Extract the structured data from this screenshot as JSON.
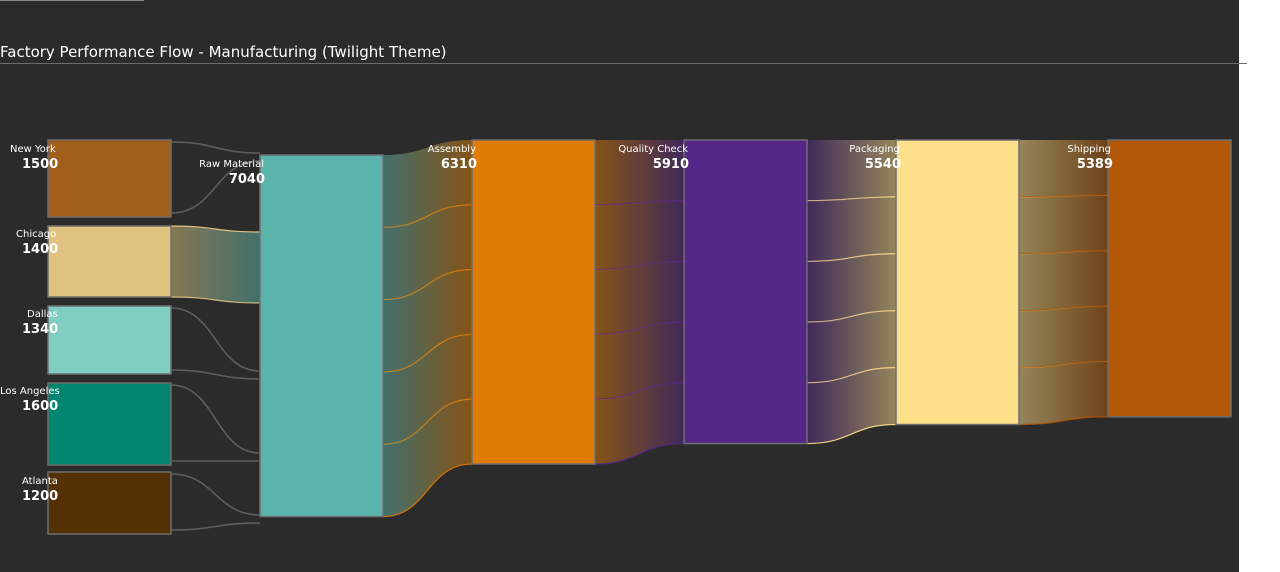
{
  "chart_data": {
    "type": "sankey",
    "title": "Factory Performance Flow - Manufacturing (Twilight Theme)",
    "nodes": [
      {
        "id": "new_york",
        "label": "New York",
        "value": 1500,
        "color": "#a25e1b"
      },
      {
        "id": "chicago",
        "label": "Chicago",
        "value": 1400,
        "color": "#dfc27f"
      },
      {
        "id": "dallas",
        "label": "Dallas",
        "value": 1340,
        "color": "#80cdc1"
      },
      {
        "id": "los_angeles",
        "label": "Los Angeles",
        "value": 1600,
        "color": "#018571"
      },
      {
        "id": "atlanta",
        "label": "Atlanta",
        "value": 1200,
        "color": "#543005"
      },
      {
        "id": "raw_material",
        "label": "Raw Material",
        "value": 7040,
        "color": "#5ab4ac"
      },
      {
        "id": "assembly",
        "label": "Assembly",
        "value": 6310,
        "color": "#e07b03"
      },
      {
        "id": "quality_check",
        "label": "Quality Check",
        "value": 5910,
        "color": "#542788"
      },
      {
        "id": "packaging",
        "label": "Packaging",
        "value": 5540,
        "color": "#fee08b"
      },
      {
        "id": "shipping",
        "label": "Shipping",
        "value": 5389,
        "color": "#b35806"
      }
    ],
    "stages": [
      [
        "new_york",
        "chicago",
        "dallas",
        "los_angeles",
        "atlanta"
      ],
      [
        "raw_material"
      ],
      [
        "assembly"
      ],
      [
        "quality_check"
      ],
      [
        "packaging"
      ],
      [
        "shipping"
      ]
    ],
    "links": [
      {
        "source": "new_york",
        "target": "raw_material"
      },
      {
        "source": "chicago",
        "target": "raw_material"
      },
      {
        "source": "dallas",
        "target": "raw_material"
      },
      {
        "source": "los_angeles",
        "target": "raw_material"
      },
      {
        "source": "atlanta",
        "target": "raw_material"
      },
      {
        "source": "raw_material",
        "target": "assembly",
        "bands": 5
      },
      {
        "source": "assembly",
        "target": "quality_check",
        "bands": 5
      },
      {
        "source": "quality_check",
        "target": "packaging",
        "bands": 5
      },
      {
        "source": "packaging",
        "target": "shipping",
        "bands": 5
      }
    ]
  }
}
